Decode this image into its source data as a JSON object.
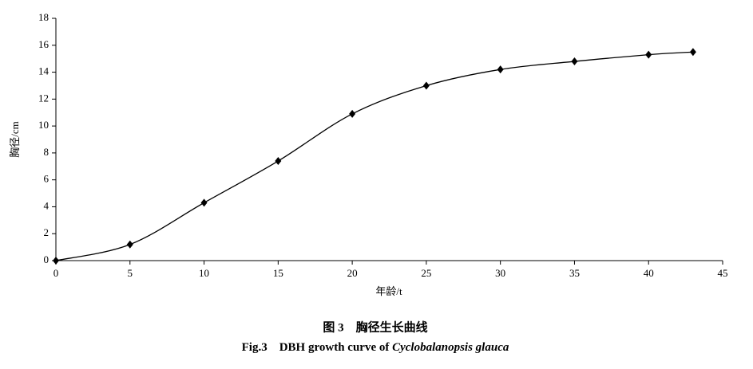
{
  "chart_data": {
    "type": "line",
    "xlabel": "年龄/t",
    "ylabel": "胸径/cm",
    "caption_cn": "图 3　胸径生长曲线",
    "caption_en": "Fig.3　DBH growth curve of",
    "caption_species": "Cyclobalanopsis glauca",
    "x": [
      0,
      5,
      10,
      15,
      20,
      25,
      30,
      35,
      40,
      43
    ],
    "series": [
      {
        "color": "#000000",
        "values": [
          0,
          1.2,
          4.3,
          7.4,
          10.9,
          13.0,
          14.2,
          14.8,
          15.3,
          15.5
        ]
      }
    ],
    "xlim": [
      0,
      45
    ],
    "xticks": [
      0,
      5,
      10,
      15,
      20,
      25,
      30,
      35,
      40,
      45
    ],
    "ylim": [
      0,
      18
    ],
    "yticks": [
      0,
      2,
      4,
      6,
      8,
      10,
      12,
      14,
      16,
      18
    ],
    "grid": false
  }
}
